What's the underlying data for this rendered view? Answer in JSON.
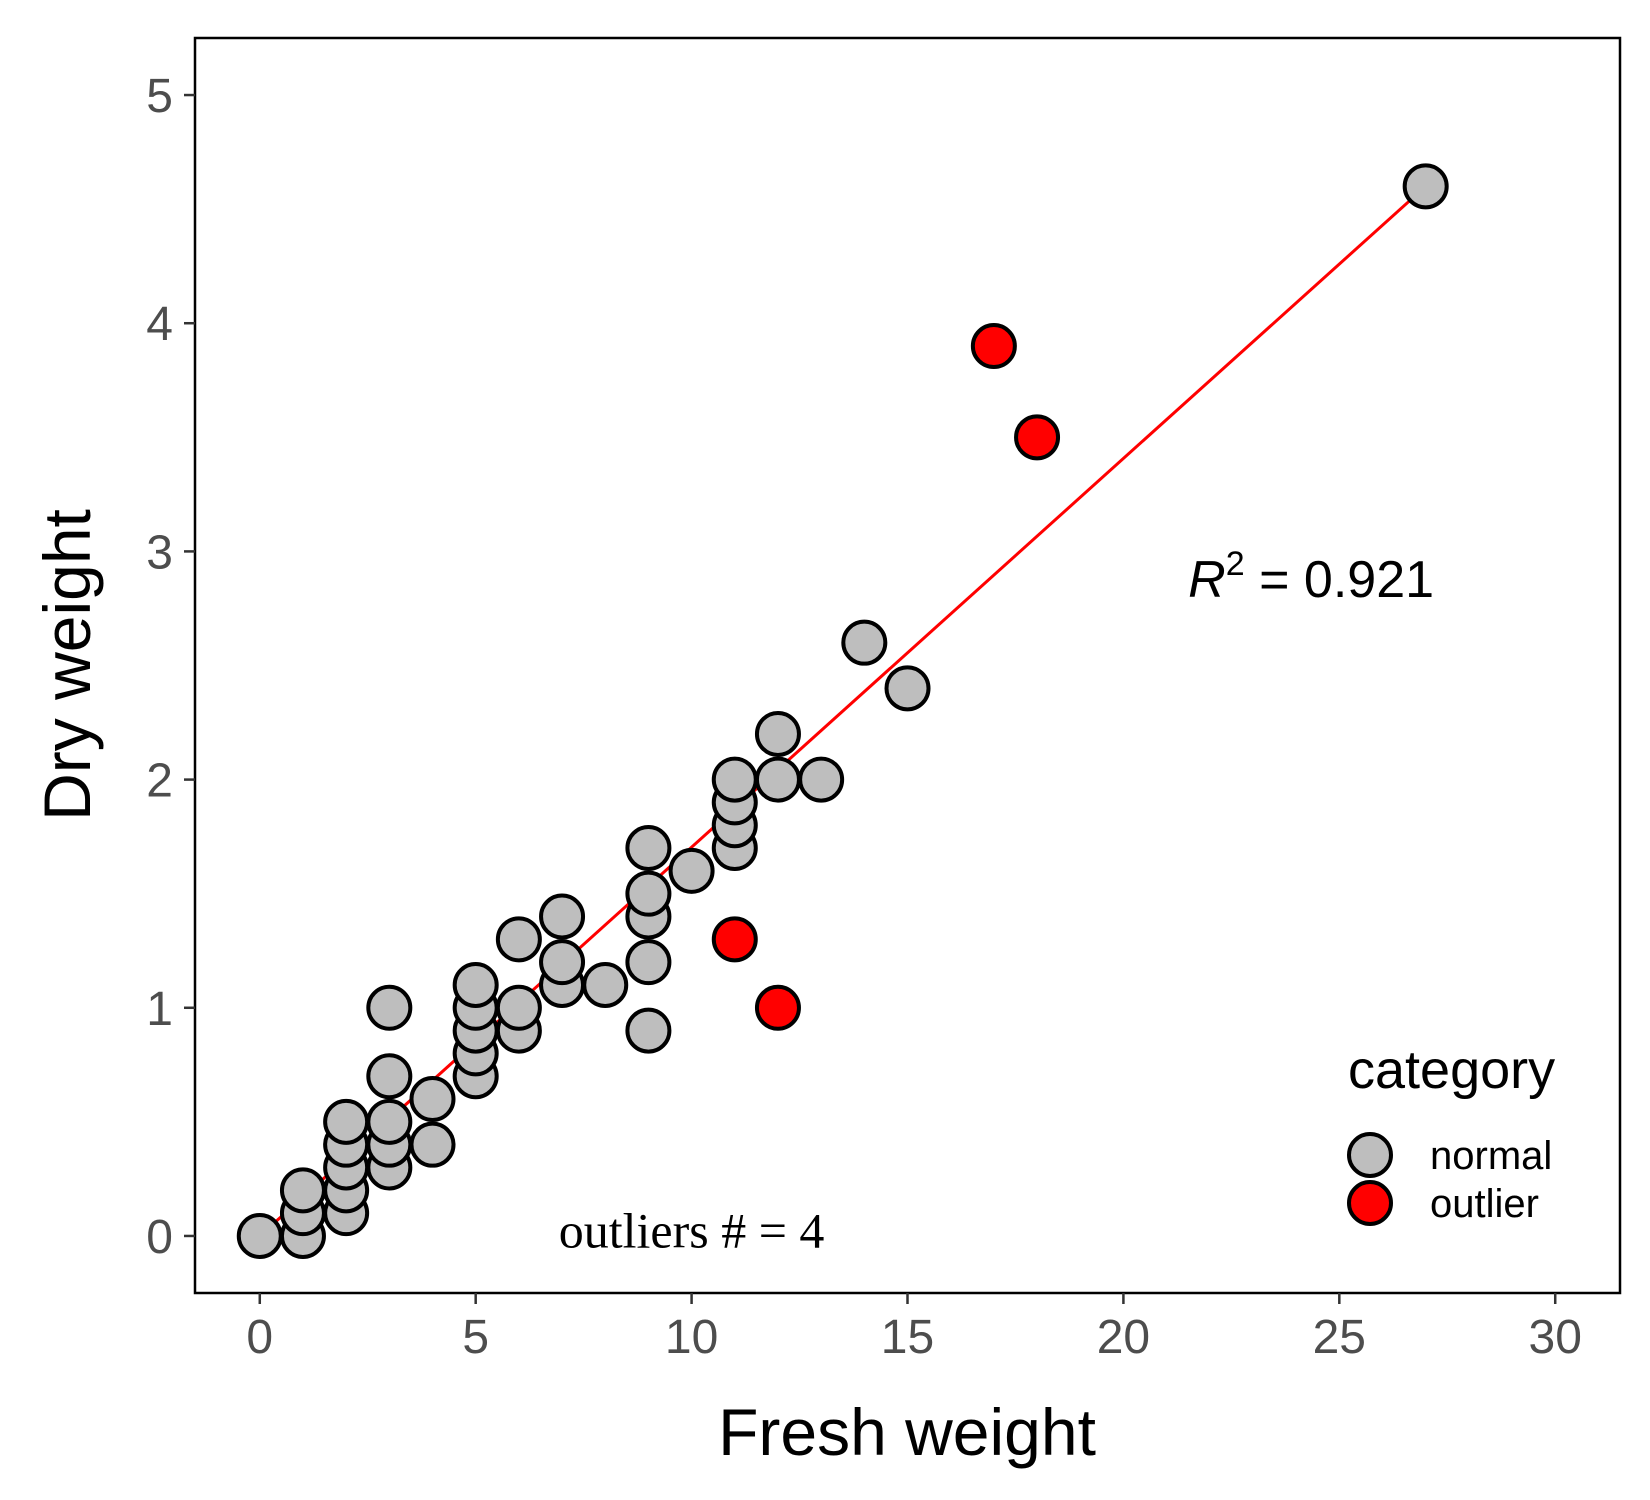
{
  "chart_data": {
    "type": "scatter",
    "xlabel": "Fresh weight",
    "ylabel": "Dry weight",
    "xlim": [
      -1.5,
      31.5
    ],
    "ylim": [
      -0.25,
      5.25
    ],
    "x_ticks": [
      0,
      5,
      10,
      15,
      20,
      25,
      30
    ],
    "y_ticks": [
      0,
      1,
      2,
      3,
      4,
      5
    ],
    "grid": false,
    "legend": {
      "title": "category",
      "position": "bottom-right",
      "entries": [
        {
          "label": "normal",
          "color": "#bebebe"
        },
        {
          "label": "outlier",
          "color": "#ff0000"
        }
      ]
    },
    "fit_line": {
      "color": "#ff0000",
      "x": [
        0,
        27
      ],
      "y": [
        0.0,
        4.6
      ]
    },
    "annotations": {
      "r2_symbol": "R",
      "r2_exponent": "2",
      "r2_text": " = 0.921",
      "r2_position": [
        21.5,
        2.8
      ],
      "outliers_text": "outliers # = 4",
      "outliers_position": [
        10,
        -0.05
      ]
    },
    "series": [
      {
        "name": "normal",
        "color": "#bebebe",
        "points": [
          [
            0,
            0
          ],
          [
            1,
            0
          ],
          [
            1,
            0.1
          ],
          [
            1,
            0.2
          ],
          [
            2,
            0.1
          ],
          [
            2,
            0.2
          ],
          [
            2,
            0.3
          ],
          [
            2,
            0.4
          ],
          [
            2,
            0.5
          ],
          [
            3,
            0.3
          ],
          [
            3,
            0.4
          ],
          [
            3,
            0.5
          ],
          [
            3,
            0.7
          ],
          [
            3,
            1.0
          ],
          [
            4,
            0.4
          ],
          [
            4,
            0.6
          ],
          [
            5,
            0.7
          ],
          [
            5,
            0.8
          ],
          [
            5,
            0.9
          ],
          [
            5,
            1.0
          ],
          [
            5,
            1.1
          ],
          [
            6,
            0.9
          ],
          [
            6,
            1.0
          ],
          [
            6,
            1.3
          ],
          [
            7,
            1.1
          ],
          [
            7,
            1.2
          ],
          [
            7,
            1.4
          ],
          [
            8,
            1.1
          ],
          [
            9,
            0.9
          ],
          [
            9,
            1.2
          ],
          [
            9,
            1.4
          ],
          [
            9,
            1.5
          ],
          [
            9,
            1.7
          ],
          [
            10,
            1.6
          ],
          [
            11,
            1.7
          ],
          [
            11,
            1.8
          ],
          [
            11,
            1.9
          ],
          [
            11,
            2.0
          ],
          [
            12,
            2.0
          ],
          [
            12,
            2.2
          ],
          [
            13,
            2.0
          ],
          [
            14,
            2.6
          ],
          [
            15,
            2.4
          ],
          [
            27,
            4.6
          ]
        ]
      },
      {
        "name": "outlier",
        "color": "#ff0000",
        "points": [
          [
            11,
            1.3
          ],
          [
            12,
            1.0
          ],
          [
            17,
            3.9
          ],
          [
            18,
            3.5
          ]
        ]
      }
    ]
  }
}
